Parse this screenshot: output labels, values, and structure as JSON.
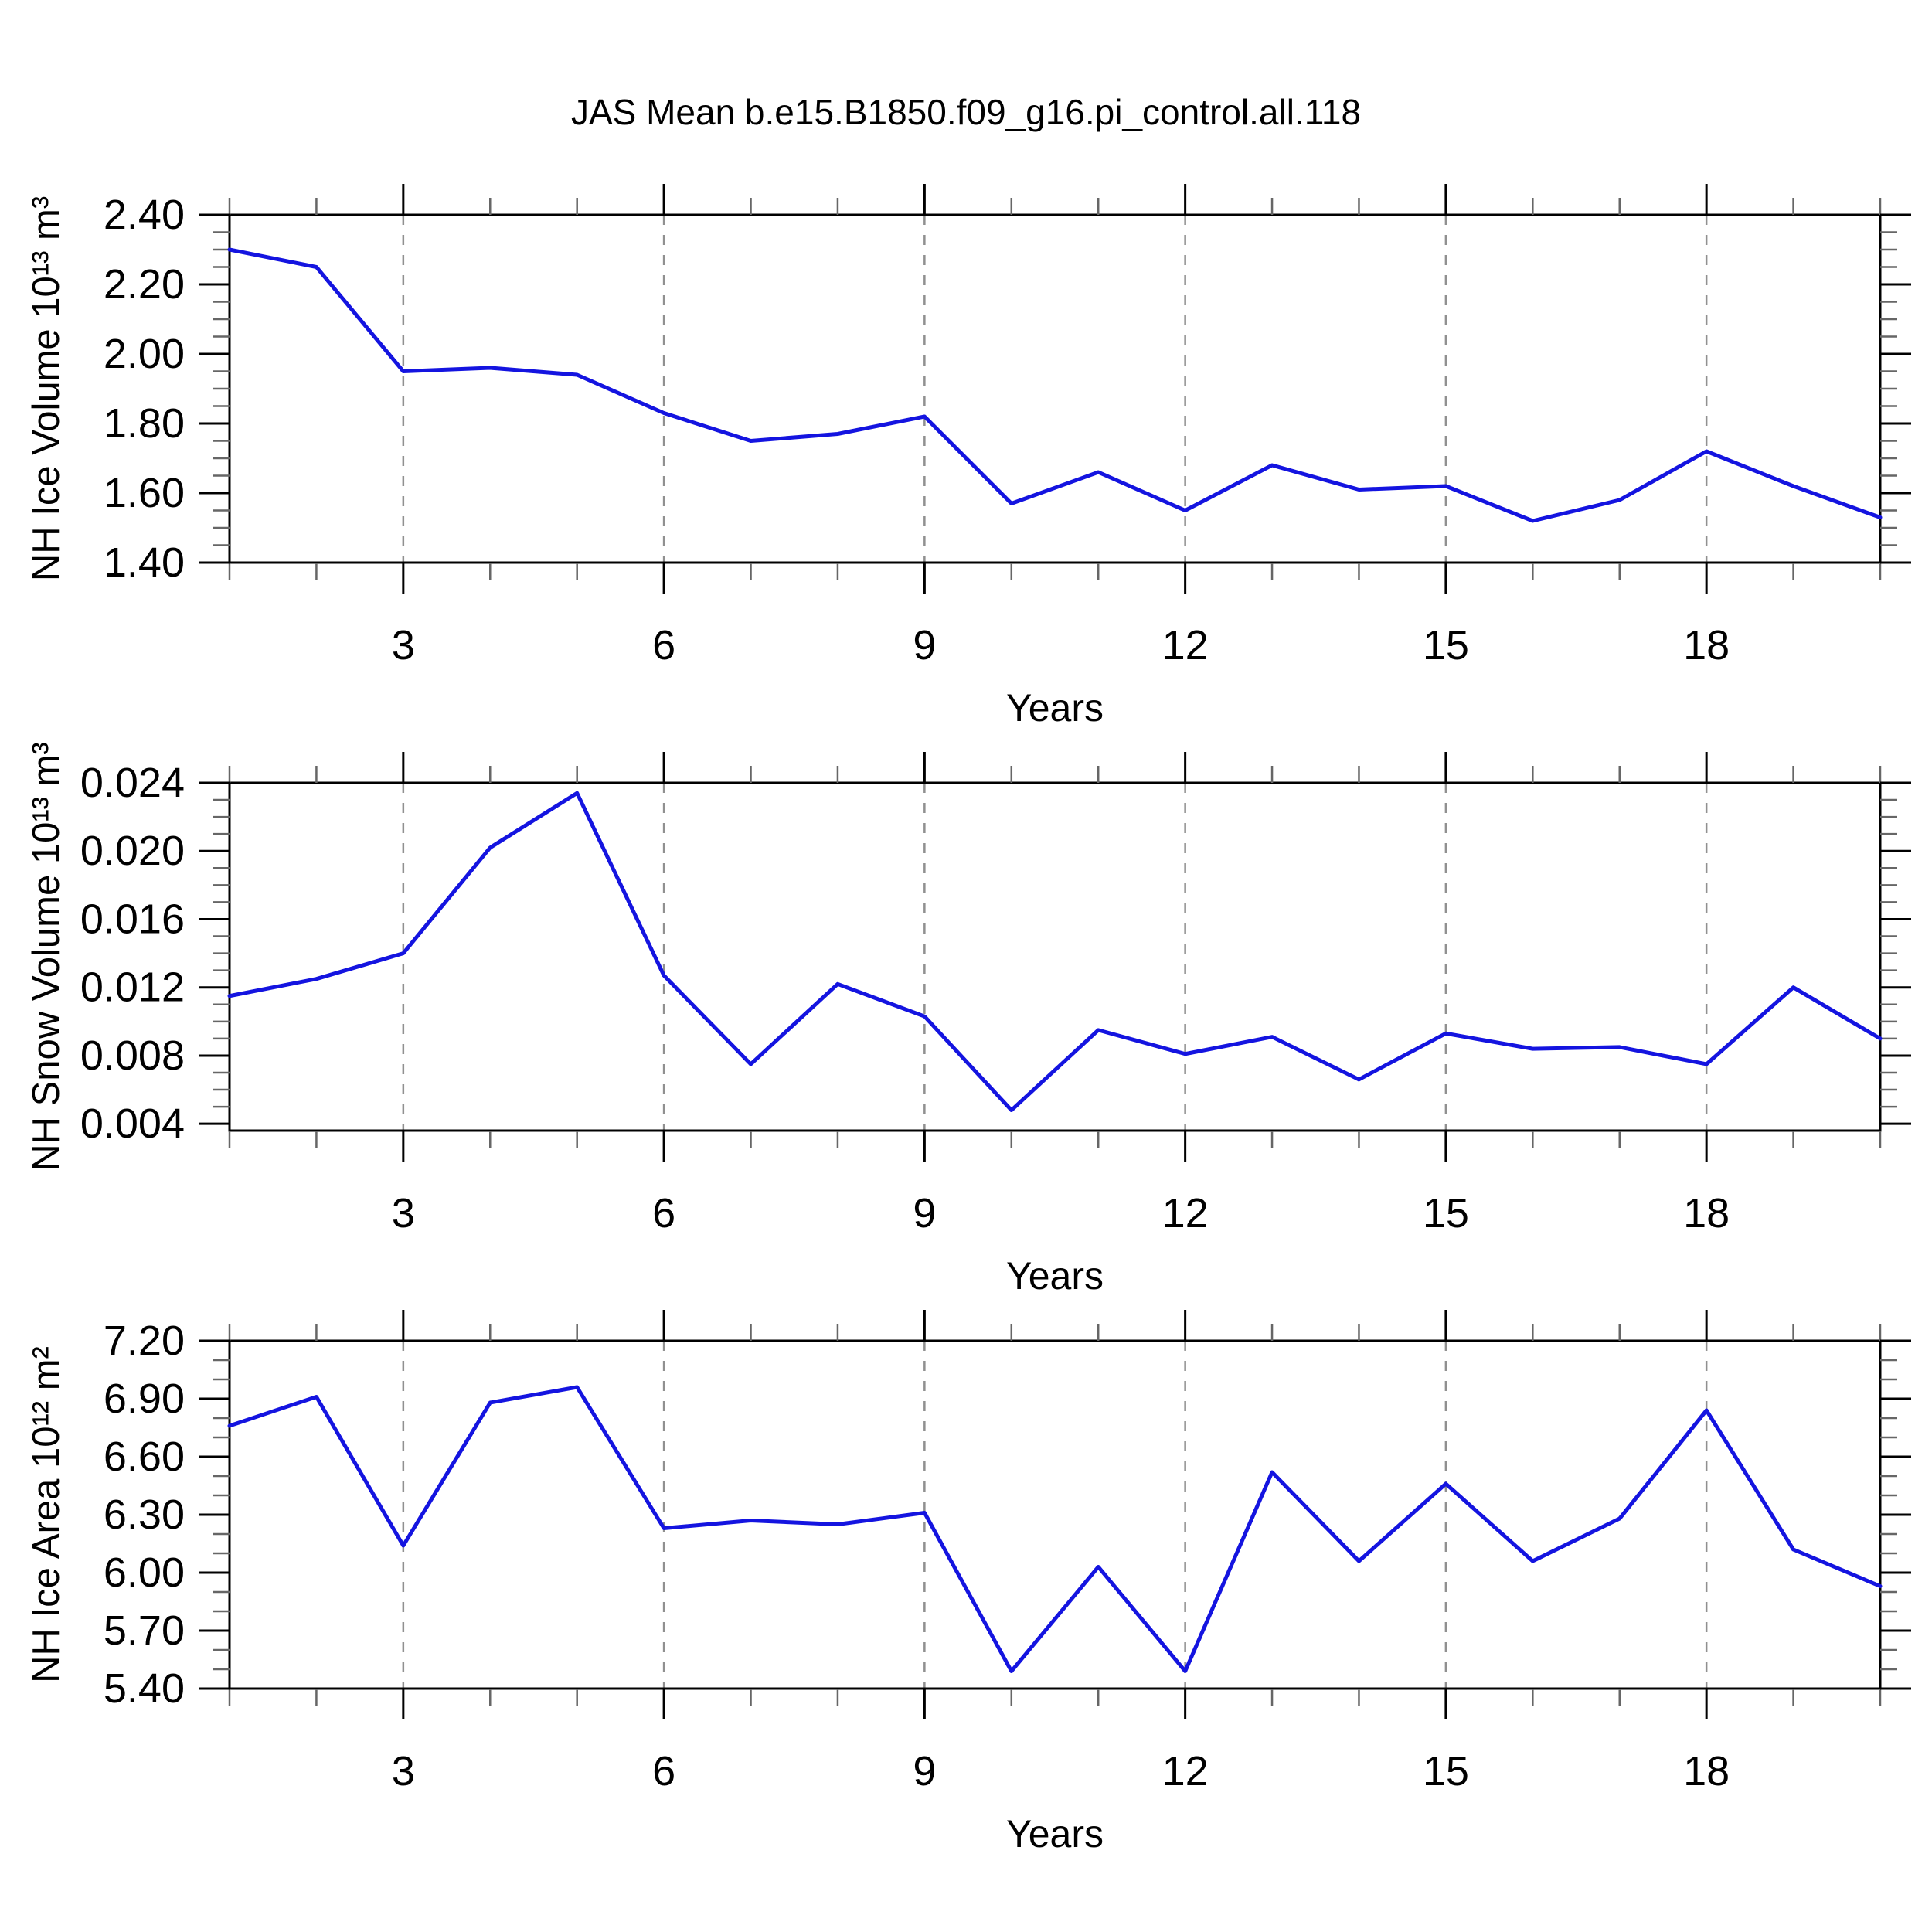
{
  "title": "JAS Mean b.e15.B1850.f09_g16.pi_control.all.118",
  "line_color": "#1414e0",
  "grid_color": "#909090",
  "chart_data": [
    {
      "type": "line",
      "title": "JAS Mean b.e15.B1850.f09_g16.pi_control.all.118",
      "ylabel": "NH Ice Volume 10¹³ m³",
      "xlabel": "Years",
      "x": [
        1,
        2,
        3,
        4,
        5,
        6,
        7,
        8,
        9,
        10,
        11,
        12,
        13,
        14,
        15,
        16,
        17,
        18,
        19,
        20
      ],
      "values": [
        2.3,
        2.25,
        1.95,
        1.96,
        1.94,
        1.83,
        1.75,
        1.77,
        1.82,
        1.57,
        1.66,
        1.55,
        1.68,
        1.61,
        1.62,
        1.52,
        1.58,
        1.72,
        1.62,
        1.53
      ],
      "xlim": [
        1,
        20
      ],
      "ylim": [
        1.4,
        2.4
      ],
      "xticks_major": [
        3,
        6,
        9,
        12,
        15,
        18
      ],
      "xtick_labels": [
        "3",
        "6",
        "9",
        "12",
        "15",
        "18"
      ],
      "yticks_major": [
        1.4,
        1.6,
        1.8,
        2.0,
        2.2,
        2.4
      ],
      "ytick_labels": [
        "1.40",
        "1.60",
        "1.80",
        "2.00",
        "2.20",
        "2.40"
      ],
      "ytick_minor_step": 0.05,
      "xtick_minor_step": 1,
      "grid": "vertical-dashed",
      "legend": "none",
      "line_color": "#1414e0"
    },
    {
      "type": "line",
      "title": "",
      "ylabel": "NH Snow Volume 10¹³ m³",
      "xlabel": "Years",
      "x": [
        1,
        2,
        3,
        4,
        5,
        6,
        7,
        8,
        9,
        10,
        11,
        12,
        13,
        14,
        15,
        16,
        17,
        18,
        19,
        20
      ],
      "values": [
        0.0115,
        0.0125,
        0.014,
        0.0202,
        0.0234,
        0.0127,
        0.0075,
        0.0122,
        0.0103,
        0.0048,
        0.0095,
        0.0081,
        0.0091,
        0.0066,
        0.0093,
        0.0084,
        0.0085,
        0.0075,
        0.012,
        0.009
      ],
      "xlim": [
        1,
        20
      ],
      "ylim": [
        0.0036,
        0.024
      ],
      "xticks_major": [
        3,
        6,
        9,
        12,
        15,
        18
      ],
      "xtick_labels": [
        "3",
        "6",
        "9",
        "12",
        "15",
        "18"
      ],
      "yticks_major": [
        0.004,
        0.008,
        0.012,
        0.016,
        0.02,
        0.024
      ],
      "ytick_labels": [
        "0.004",
        "0.008",
        "0.012",
        "0.016",
        "0.020",
        "0.024"
      ],
      "ytick_minor_step": 0.001,
      "xtick_minor_step": 1,
      "grid": "vertical-dashed",
      "legend": "none",
      "line_color": "#1414e0"
    },
    {
      "type": "line",
      "title": "",
      "ylabel": "NH Ice Area 10¹² m²",
      "xlabel": "Years",
      "x": [
        1,
        2,
        3,
        4,
        5,
        6,
        7,
        8,
        9,
        10,
        11,
        12,
        13,
        14,
        15,
        16,
        17,
        18,
        19,
        20
      ],
      "values": [
        6.76,
        6.91,
        6.14,
        6.88,
        6.96,
        6.23,
        6.27,
        6.25,
        6.31,
        5.49,
        6.03,
        5.49,
        6.52,
        6.06,
        6.46,
        6.06,
        6.28,
        6.84,
        6.12,
        5.93
      ],
      "xlim": [
        1,
        20
      ],
      "ylim": [
        5.4,
        7.2
      ],
      "xticks_major": [
        3,
        6,
        9,
        12,
        15,
        18
      ],
      "xtick_labels": [
        "3",
        "6",
        "9",
        "12",
        "15",
        "18"
      ],
      "yticks_major": [
        5.4,
        5.7,
        6.0,
        6.3,
        6.6,
        6.9,
        7.2
      ],
      "ytick_labels": [
        "5.40",
        "5.70",
        "6.00",
        "6.30",
        "6.60",
        "6.90",
        "7.20"
      ],
      "ytick_minor_step": 0.1,
      "xtick_minor_step": 1,
      "grid": "vertical-dashed",
      "legend": "none",
      "line_color": "#1414e0"
    }
  ]
}
